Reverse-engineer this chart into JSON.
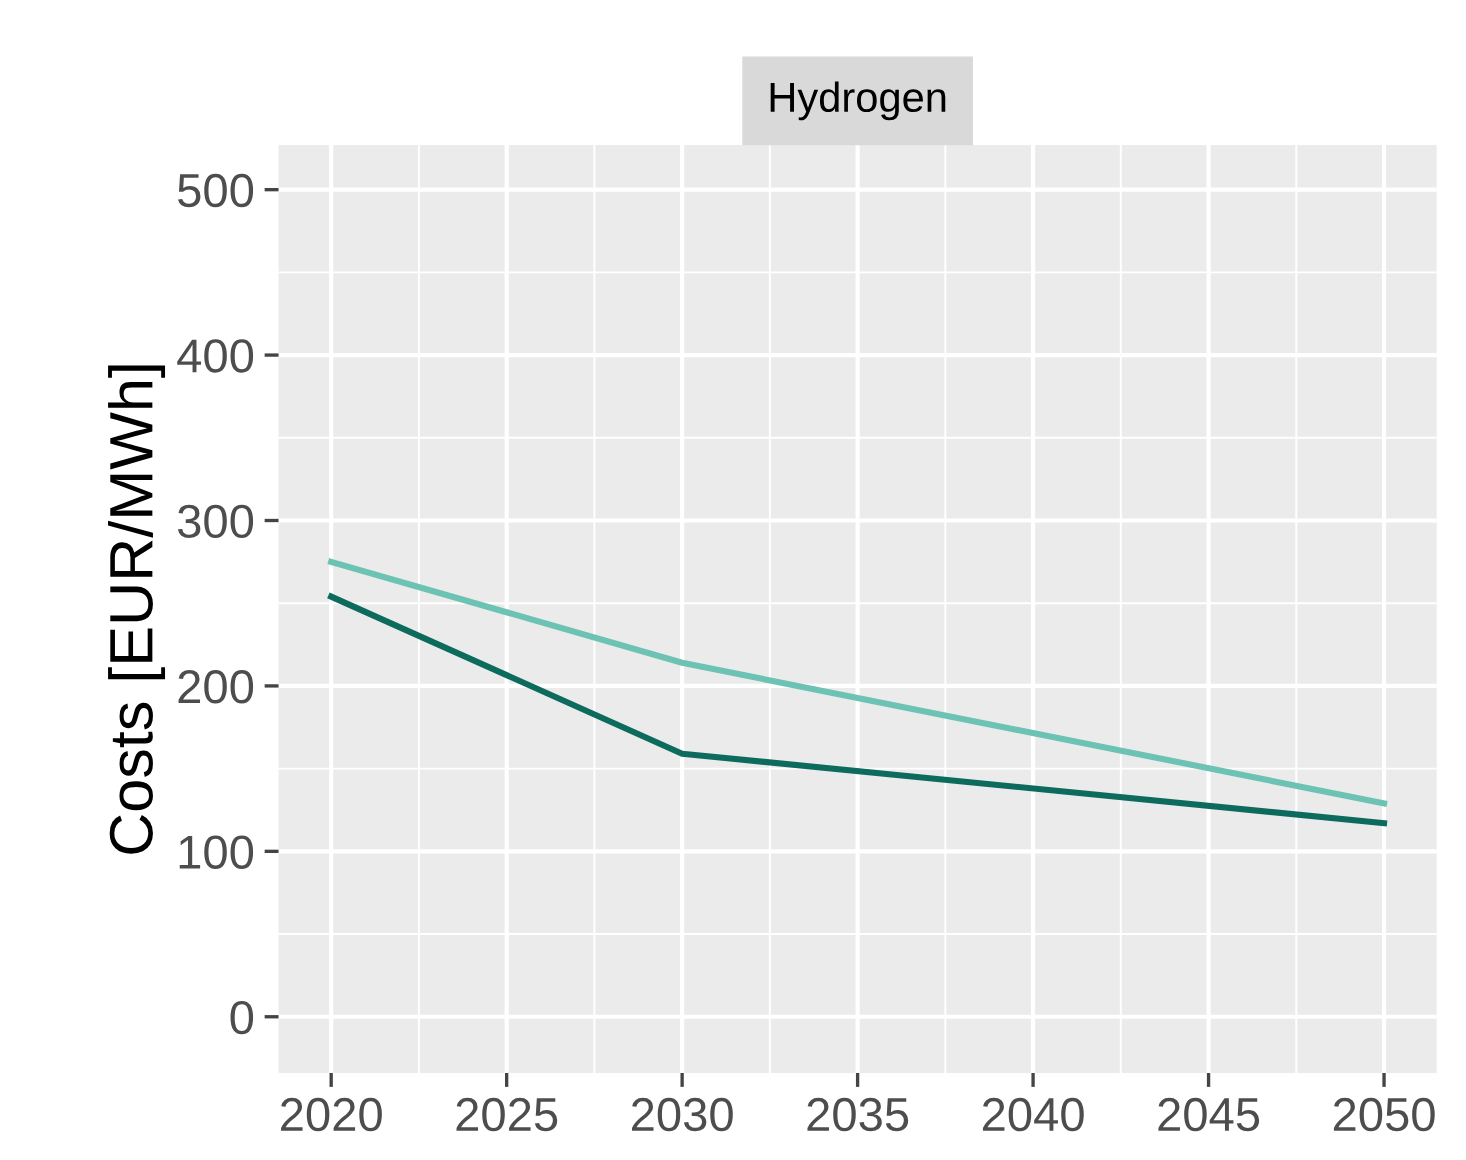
{
  "chart_data": {
    "type": "line",
    "title": "Hydrogen",
    "ylabel": "Costs [EUR/MWh]",
    "x": [
      2020,
      2030,
      2050
    ],
    "series": [
      {
        "color": "#6cc3b3",
        "values": [
          275,
          214,
          129
        ]
      },
      {
        "color": "#0d6b5e",
        "values": [
          254,
          159,
          117
        ]
      }
    ],
    "xlim": [
      2018.5,
      2051.5
    ],
    "xticks": [
      2020,
      2025,
      2030,
      2035,
      2040,
      2045,
      2050
    ],
    "ylim": [
      -34,
      527
    ],
    "yticks": [
      0,
      100,
      200,
      300,
      400,
      500
    ],
    "grid": true,
    "legend": false,
    "marker": "none",
    "line_style": "solid"
  }
}
